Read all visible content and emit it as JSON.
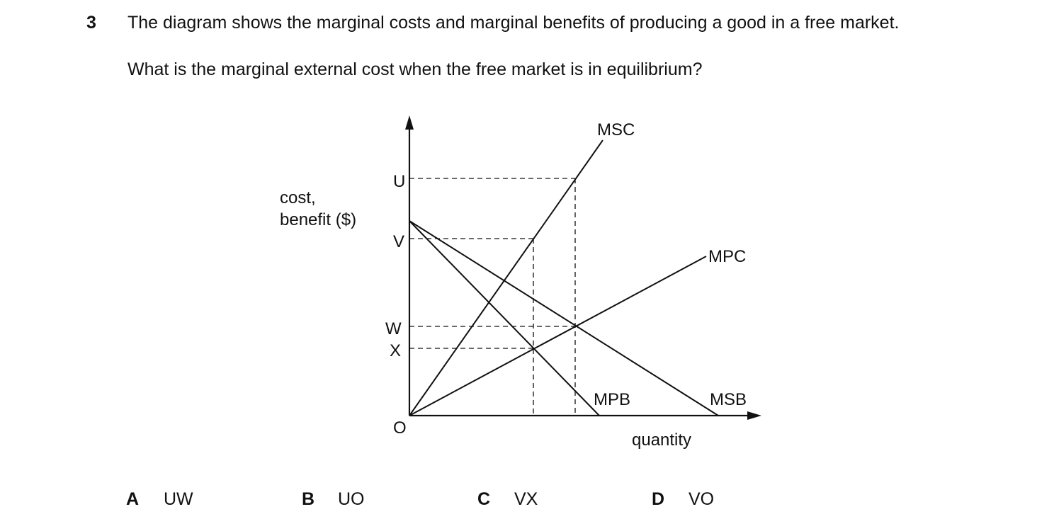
{
  "question": {
    "number": "3",
    "stem": "The diagram shows the marginal costs and marginal benefits of producing a good in a free market.",
    "prompt": "What is the marginal external cost when the free market is in equilibrium?"
  },
  "diagram": {
    "y_axis_label_line1": "cost,",
    "y_axis_label_line2": "benefit ($)",
    "x_axis_label": "quantity",
    "origin_label": "O",
    "y_points": [
      "U",
      "V",
      "W",
      "X"
    ],
    "curves": {
      "msc": "MSC",
      "mpc": "MPC",
      "mpb": "MPB",
      "msb": "MSB"
    }
  },
  "options": [
    {
      "letter": "A",
      "text": "UW"
    },
    {
      "letter": "B",
      "text": "UO"
    },
    {
      "letter": "C",
      "text": "VX"
    },
    {
      "letter": "D",
      "text": "VO"
    }
  ]
}
